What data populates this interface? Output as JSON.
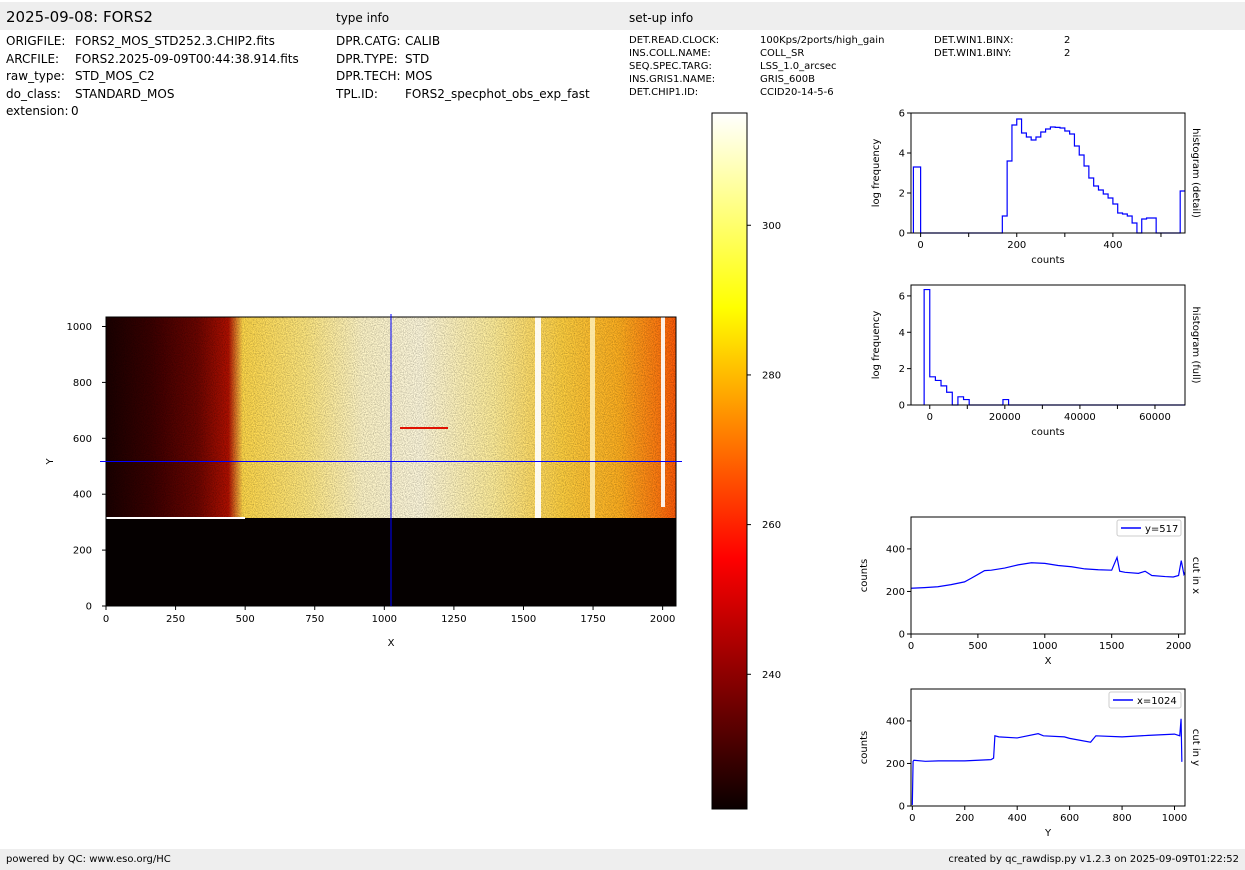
{
  "header": {
    "title": "2025-09-08: FORS2",
    "type_info_label": "type info",
    "setup_info_label": "set-up info"
  },
  "file_info": [
    {
      "key": "ORIGFILE:",
      "value": "FORS2_MOS_STD252.3.CHIP2.fits"
    },
    {
      "key": "ARCFILE:",
      "value": "FORS2.2025-09-09T00:44:38.914.fits"
    },
    {
      "key": "raw_type:",
      "value": "STD_MOS_C2"
    },
    {
      "key": "do_class:",
      "value": "STANDARD_MOS"
    },
    {
      "key": "extension:",
      "value": "0"
    }
  ],
  "type_info": [
    {
      "key": "DPR.CATG:",
      "value": "CALIB"
    },
    {
      "key": "DPR.TYPE:",
      "value": "STD"
    },
    {
      "key": "DPR.TECH:",
      "value": "MOS"
    },
    {
      "key": "TPL.ID:",
      "value": "FORS2_specphot_obs_exp_fast"
    }
  ],
  "setup_info": [
    {
      "key": "DET.READ.CLOCK:",
      "value": "100Kps/2ports/high_gain"
    },
    {
      "key": "INS.COLL.NAME:",
      "value": "COLL_SR"
    },
    {
      "key": "SEQ.SPEC.TARG:",
      "value": "LSS_1.0_arcsec"
    },
    {
      "key": "INS.GRIS1.NAME:",
      "value": "GRIS_600B"
    },
    {
      "key": "DET.CHIP1.ID:",
      "value": "CCID20-14-5-6"
    }
  ],
  "setup_info2": [
    {
      "key": "DET.WIN1.BINX:",
      "value": "2"
    },
    {
      "key": "DET.WIN1.BINY:",
      "value": "2"
    }
  ],
  "footer": {
    "left": "powered by QC: www.eso.org/HC",
    "right": "created by qc_rawdisp.py v1.2.3 on 2025-09-09T01:22:52"
  },
  "chart_data": [
    {
      "type": "heatmap",
      "xlabel": "X",
      "ylabel": "Y",
      "xlim": [
        0,
        2048
      ],
      "ylim": [
        0,
        1034
      ],
      "xticks": [
        0,
        250,
        500,
        750,
        1000,
        1250,
        1500,
        1750,
        2000
      ],
      "yticks": [
        0,
        200,
        400,
        600,
        800,
        1000
      ],
      "cut_x": 1024,
      "cut_y": 517,
      "colorbar": {
        "vmin": 222,
        "vmax": 315,
        "ticks": [
          240,
          260,
          280,
          300
        ],
        "colormap": "hot"
      }
    },
    {
      "type": "line",
      "title_right": "histogram (detail)",
      "xlabel": "counts",
      "ylabel": "log frequency",
      "xlim": [
        -20,
        550
      ],
      "ylim": [
        0,
        6
      ],
      "xticks": [
        0,
        200,
        400
      ],
      "yticks": [
        0,
        2,
        4,
        6
      ],
      "color": "#0000ff",
      "x": [
        -15,
        0,
        170,
        180,
        190,
        200,
        210,
        220,
        230,
        240,
        250,
        260,
        270,
        280,
        290,
        300,
        310,
        320,
        330,
        340,
        350,
        360,
        370,
        380,
        390,
        400,
        410,
        420,
        430,
        440,
        450,
        460,
        470,
        480,
        490,
        500,
        510,
        520,
        530,
        540,
        550
      ],
      "y": [
        3.3,
        0,
        0.85,
        3.6,
        5.4,
        5.7,
        5.0,
        4.8,
        4.65,
        4.8,
        5.05,
        5.2,
        5.3,
        5.28,
        5.25,
        5.1,
        4.95,
        4.35,
        3.9,
        3.35,
        2.75,
        2.35,
        2.15,
        1.95,
        1.75,
        1.45,
        1.0,
        0.95,
        0.85,
        0.5,
        0,
        0.7,
        0.75,
        0.75,
        0,
        0,
        0,
        0,
        0,
        2.1,
        2.1
      ]
    },
    {
      "type": "line",
      "title_right": "histogram (full)",
      "xlabel": "counts",
      "ylabel": "log frequency",
      "xlim": [
        -5000,
        68000
      ],
      "ylim": [
        0,
        6.6
      ],
      "xticks": [
        0,
        20000,
        40000,
        60000
      ],
      "yticks": [
        0,
        2,
        4,
        6
      ],
      "color": "#0000ff",
      "x": [
        -1500,
        0,
        1500,
        3000,
        4500,
        6000,
        7500,
        9000,
        10500,
        12000,
        19500,
        21000,
        22500,
        68000
      ],
      "y": [
        6.35,
        1.55,
        1.35,
        1.05,
        0.7,
        0,
        0.45,
        0.3,
        0,
        0,
        0.3,
        0,
        0,
        0
      ]
    },
    {
      "type": "line",
      "title_right": "cut in x",
      "xlabel": "X",
      "ylabel": "counts",
      "legend": "y=517",
      "legend_position": "top-right",
      "xlim": [
        0,
        2048
      ],
      "ylim": [
        0,
        550
      ],
      "xticks": [
        0,
        500,
        1000,
        1500,
        2000
      ],
      "yticks": [
        0,
        200,
        400
      ],
      "color": "#0000ff",
      "x": [
        0,
        100,
        200,
        300,
        400,
        450,
        500,
        550,
        600,
        700,
        800,
        900,
        1000,
        1100,
        1200,
        1300,
        1400,
        1500,
        1540,
        1560,
        1600,
        1700,
        1750,
        1800,
        1900,
        1960,
        2000,
        2020,
        2040,
        2048
      ],
      "y": [
        215,
        218,
        222,
        232,
        245,
        262,
        280,
        298,
        300,
        310,
        325,
        335,
        332,
        322,
        316,
        306,
        302,
        300,
        360,
        295,
        290,
        285,
        295,
        275,
        270,
        268,
        275,
        345,
        280,
        290
      ]
    },
    {
      "type": "line",
      "title_right": "cut in y",
      "xlabel": "Y",
      "ylabel": "counts",
      "legend": "x=1024",
      "legend_position": "top-right",
      "xlim": [
        -5,
        1040
      ],
      "ylim": [
        0,
        550
      ],
      "xticks": [
        0,
        200,
        400,
        600,
        800,
        1000
      ],
      "yticks": [
        0,
        200,
        400
      ],
      "color": "#0000ff",
      "x": [
        0,
        3,
        6,
        50,
        100,
        200,
        300,
        310,
        315,
        330,
        400,
        480,
        500,
        580,
        600,
        680,
        700,
        800,
        900,
        1000,
        1020,
        1025,
        1028,
        1030
      ],
      "y": [
        5,
        210,
        215,
        210,
        212,
        212,
        218,
        225,
        330,
        325,
        320,
        340,
        330,
        325,
        318,
        300,
        330,
        325,
        332,
        338,
        330,
        410,
        210,
        210
      ]
    }
  ]
}
